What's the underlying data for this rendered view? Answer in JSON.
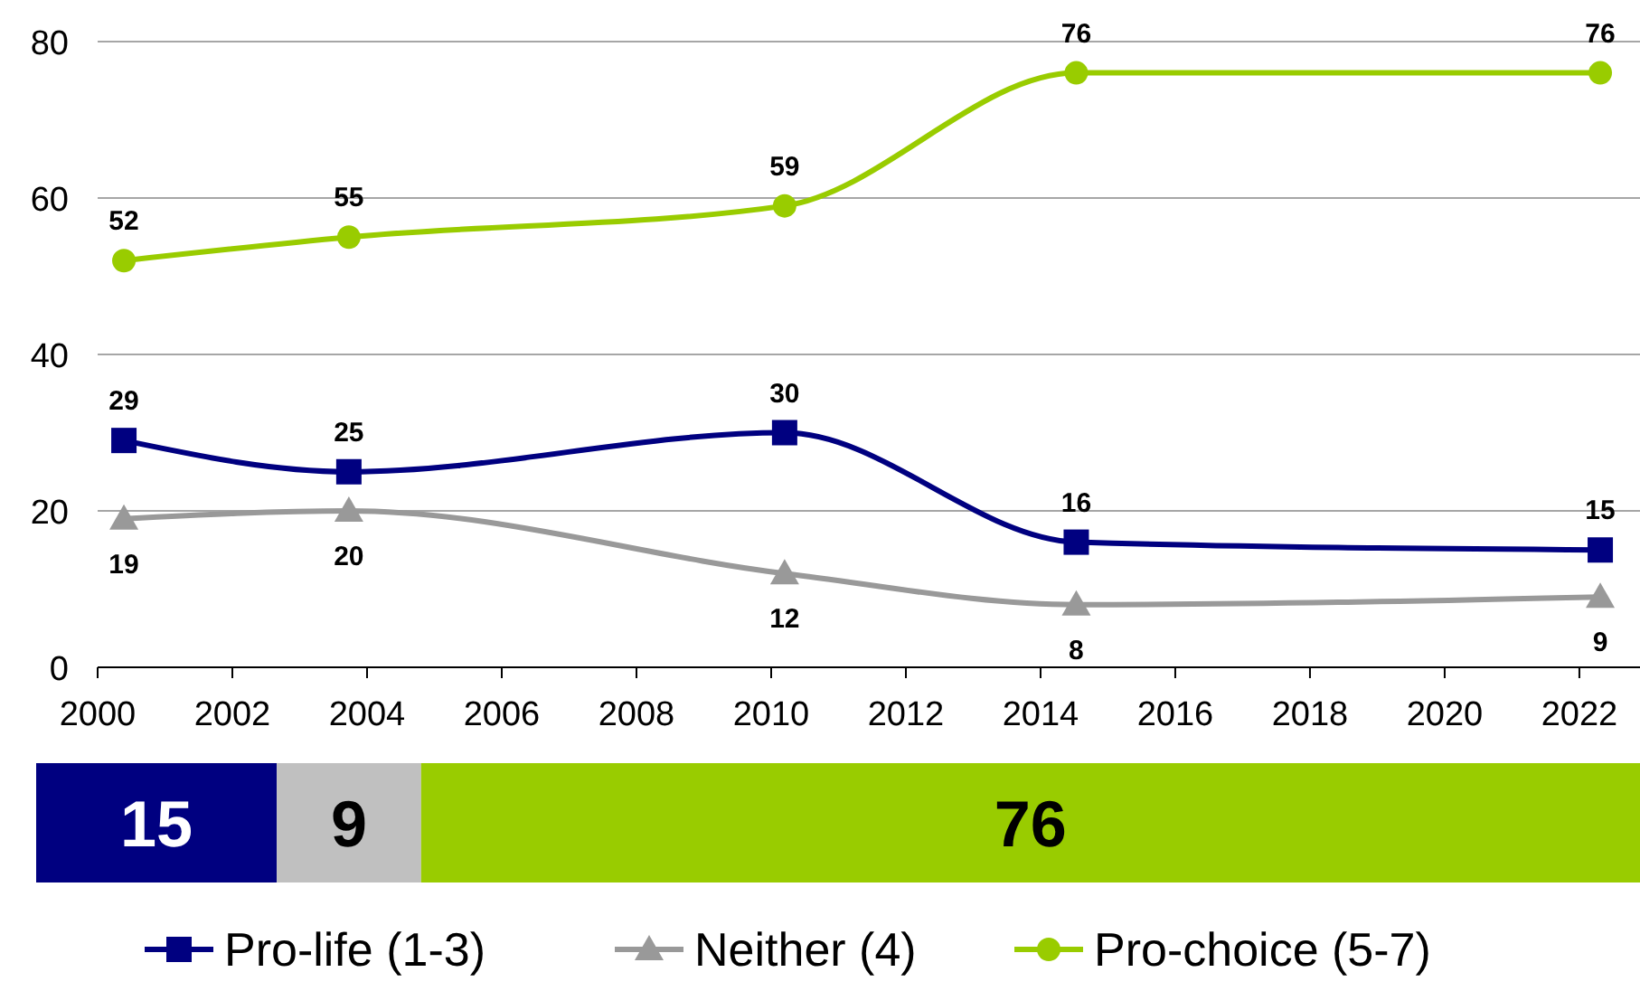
{
  "chart_data": [
    {
      "type": "line",
      "x": [
        2000.39,
        2003.73,
        2010.2,
        2014.53,
        2022.31
      ],
      "xlim": [
        2000,
        2022.9
      ],
      "xticks": [
        2000,
        2002,
        2004,
        2006,
        2008,
        2010,
        2012,
        2014,
        2016,
        2018,
        2020,
        2022
      ],
      "ylim": [
        0,
        80
      ],
      "yticks": [
        0,
        20,
        40,
        60,
        80
      ],
      "grid": "y",
      "legend": "bottom",
      "data_labels": true,
      "line_style": "solid",
      "series": [
        {
          "name": "Pro-life (1-3)",
          "color": "#000080",
          "marker": "square",
          "values": [
            29,
            25,
            30,
            16,
            15
          ]
        },
        {
          "name": "Neither (4)",
          "color": "#999999",
          "marker": "triangle",
          "values": [
            19,
            20,
            12,
            8,
            9
          ]
        },
        {
          "name": "Pro-choice (5-7)",
          "color": "#99cc00",
          "marker": "circle",
          "values": [
            52,
            55,
            59,
            76,
            76
          ]
        }
      ]
    },
    {
      "type": "bar",
      "orientation": "horizontal",
      "stacked": true,
      "categories": [
        null
      ],
      "xlim": [
        0,
        100
      ],
      "data_labels": true,
      "series": [
        {
          "color": "#000080",
          "values": [
            15
          ]
        },
        {
          "color": "#c0c0c0",
          "values": [
            9
          ]
        },
        {
          "color": "#99cc00",
          "values": [
            76
          ]
        }
      ]
    }
  ]
}
